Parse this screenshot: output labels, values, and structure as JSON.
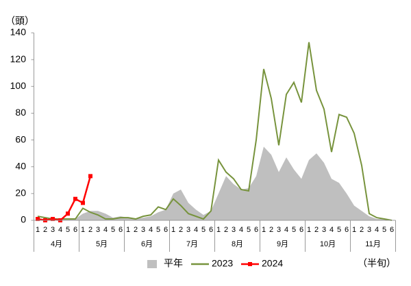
{
  "chart_data": {
    "type": "line",
    "y_label": "（頭）",
    "x_label": "（半旬）",
    "categories": [
      "1",
      "2",
      "3",
      "4",
      "5",
      "6",
      "1",
      "2",
      "3",
      "4",
      "5",
      "6",
      "1",
      "2",
      "3",
      "4",
      "5",
      "6",
      "1",
      "2",
      "3",
      "4",
      "5",
      "6",
      "1",
      "2",
      "3",
      "4",
      "5",
      "6",
      "1",
      "2",
      "3",
      "4",
      "5",
      "6",
      "1",
      "2",
      "3",
      "4",
      "5",
      "6",
      "1",
      "2",
      "3",
      "4",
      "5",
      "6"
    ],
    "groups": [
      "4月",
      "5月",
      "6月",
      "7月",
      "8月",
      "9月",
      "10月",
      "11月"
    ],
    "ylim": [
      0,
      140
    ],
    "yticks": [
      0,
      20,
      40,
      60,
      80,
      100,
      120,
      140
    ],
    "series": [
      {
        "name": "平年",
        "type": "area",
        "color": "#bfbfbf",
        "values": [
          1,
          1,
          1,
          1,
          1,
          1,
          5,
          7,
          7,
          5,
          2,
          3,
          2,
          1,
          2,
          3,
          6,
          8,
          20,
          23,
          13,
          8,
          4,
          7,
          20,
          33,
          27,
          23,
          24,
          33,
          55,
          49,
          36,
          47,
          38,
          31,
          45,
          50,
          43,
          31,
          28,
          20,
          11,
          7,
          3,
          1,
          1,
          0
        ]
      },
      {
        "name": "2023",
        "type": "line",
        "color": "#77933c",
        "values": [
          3,
          2,
          1,
          1,
          1,
          1,
          9,
          6,
          4,
          1,
          1,
          2,
          2,
          1,
          3,
          4,
          10,
          8,
          16,
          11,
          5,
          3,
          1,
          7,
          45,
          36,
          31,
          23,
          22,
          60,
          113,
          91,
          56,
          94,
          103,
          88,
          133,
          97,
          83,
          51,
          79,
          77,
          65,
          41,
          5,
          2,
          1,
          0
        ]
      },
      {
        "name": "2024",
        "type": "line",
        "color": "#ff0000",
        "marker": "square",
        "values": [
          1,
          0,
          1,
          0,
          5,
          16,
          13,
          33,
          null,
          null,
          null,
          null,
          null,
          null,
          null,
          null,
          null,
          null,
          null,
          null,
          null,
          null,
          null,
          null,
          null,
          null,
          null,
          null,
          null,
          null,
          null,
          null,
          null,
          null,
          null,
          null,
          null,
          null,
          null,
          null,
          null,
          null,
          null,
          null,
          null,
          null,
          null,
          null
        ]
      }
    ]
  }
}
